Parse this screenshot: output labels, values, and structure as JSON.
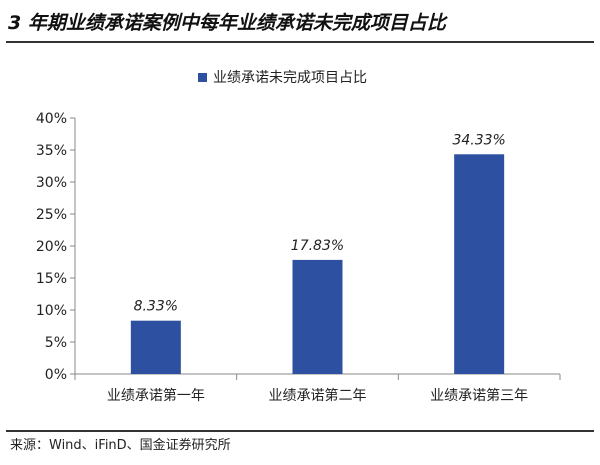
{
  "header": {
    "title": "3 年期业绩承诺案例中每年业绩承诺未完成项目占比"
  },
  "chart_data": {
    "type": "bar",
    "categories": [
      "业绩承诺第一年",
      "业绩承诺第二年",
      "业绩承诺第三年"
    ],
    "series": [
      {
        "name": "业绩承诺未完成项目占比",
        "values": [
          8.33,
          17.83,
          34.33
        ]
      }
    ],
    "data_labels": [
      "8.33%",
      "17.83%",
      "34.33%"
    ],
    "y_ticks": [
      "0%",
      "5%",
      "10%",
      "15%",
      "20%",
      "25%",
      "30%",
      "35%",
      "40%"
    ],
    "ylim": [
      0,
      40
    ],
    "grid": false,
    "legend_position": "top",
    "bar_color": "#2e50a0"
  },
  "footer": {
    "source": "来源：Wind、iFinD、国金证券研究所"
  }
}
